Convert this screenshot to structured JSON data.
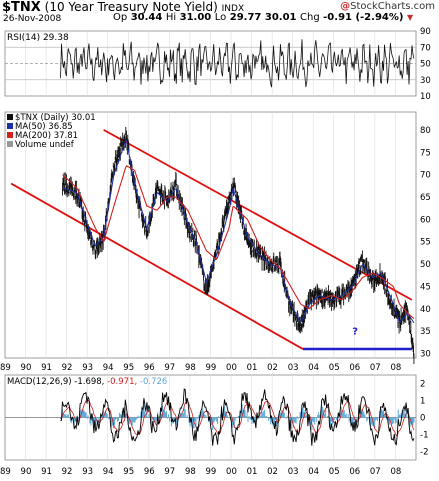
{
  "header": {
    "symbol": "$TNX",
    "name": "(10 Year Treasury Note Yield)",
    "exchange": "INDX",
    "date": "26-Nov-2008",
    "quote": {
      "open_label": "Op",
      "open": "30.44",
      "high_label": "Hi",
      "high": "31.00",
      "low_label": "Lo",
      "low": "29.77",
      "close": "30.01",
      "chg_label": "Chg",
      "chg": "-0.91 (-2.94%)",
      "chg_marker": "▼"
    },
    "watermark": "StockCharts.com"
  },
  "colors": {
    "price": "#111111",
    "ma50": "#1c2fa8",
    "ma200": "#d41f1f",
    "trend": "#e01010",
    "support": "#1f1fd0",
    "macd_line": "#000000",
    "macd_signal": "#cc2222",
    "macd_hist": "#5aa7d8"
  },
  "rsi": {
    "label": "RSI(14) 29.38",
    "y_ticks": [
      "90",
      "70",
      "50",
      "30",
      "10"
    ]
  },
  "price_panel": {
    "legend": [
      {
        "text": "$TNX (Daily) 30.01",
        "color": "#111111"
      },
      {
        "text": "MA(50) 36.85",
        "color": "#1c2fa8"
      },
      {
        "text": "MA(200) 37.81",
        "color": "#d41f1f"
      },
      {
        "text": "Volume undef",
        "color": "#999999"
      }
    ],
    "y_ticks": [
      "80",
      "75",
      "70",
      "65",
      "60",
      "55",
      "50",
      "45",
      "40",
      "35",
      "30"
    ],
    "annotation": "?"
  },
  "macd": {
    "label_prefix": "MACD(12,26,9)",
    "macd_value": "-1.698",
    "signal_value": "-0.971",
    "hist_value": "-0.726",
    "y_ticks": [
      "2",
      "1",
      "0",
      "-1",
      "-2"
    ]
  },
  "x_axis": {
    "ticks": [
      "89",
      "90",
      "91",
      "92",
      "93",
      "94",
      "95",
      "96",
      "97",
      "98",
      "99",
      "00",
      "01",
      "02",
      "03",
      "04",
      "05",
      "06",
      "07",
      "08"
    ]
  },
  "chart_data": [
    {
      "type": "line",
      "title": "RSI(14) 29.38",
      "ylim": [
        10,
        90
      ],
      "grid": true,
      "note": "oscillating daily RSI, range roughly 20-80"
    },
    {
      "type": "line",
      "title": "$TNX (10 Year Treasury Note Yield)",
      "x": [
        1991.8,
        1992.5,
        1993.0,
        1993.4,
        1993.8,
        1994.3,
        1994.9,
        1995.3,
        1995.9,
        1996.4,
        1996.9,
        1997.3,
        1997.9,
        1998.3,
        1998.8,
        1999.3,
        1999.9,
        2000.1,
        2000.8,
        2001.4,
        2001.9,
        2002.4,
        2002.9,
        2003.4,
        2003.8,
        2004.3,
        2004.9,
        2005.4,
        2005.9,
        2006.4,
        2006.9,
        2007.3,
        2007.9,
        2008.2,
        2008.6,
        2008.9
      ],
      "series": [
        {
          "name": "$TNX (Daily) 30.01",
          "values": [
            68,
            66,
            58,
            53,
            56,
            72,
            79,
            67,
            57,
            67,
            64,
            68,
            58,
            55,
            44,
            53,
            64,
            68,
            55,
            52,
            50,
            50,
            40,
            36,
            42,
            43,
            42,
            43,
            45,
            51,
            46,
            48,
            40,
            37,
            40,
            30.01
          ]
        },
        {
          "name": "MA(50) 36.85",
          "values": [
            67,
            66,
            59,
            54,
            56,
            70,
            78,
            68,
            58,
            66,
            64,
            67,
            59,
            55,
            46,
            52,
            62,
            67,
            56,
            52,
            50,
            49,
            41,
            37,
            41,
            43,
            42,
            43,
            45,
            50,
            47,
            48,
            41,
            37,
            39,
            36.85
          ]
        },
        {
          "name": "MA(200) 37.81",
          "values": [
            70,
            67,
            62,
            58,
            55,
            63,
            72,
            71,
            63,
            62,
            65,
            65,
            62,
            58,
            53,
            51,
            58,
            63,
            60,
            54,
            51,
            49,
            45,
            41,
            40,
            42,
            43,
            42,
            44,
            47,
            48,
            47,
            45,
            41,
            39,
            37.81
          ]
        }
      ],
      "trendlines": [
        {
          "from": [
            1993.8,
            80
          ],
          "to": [
            2008.8,
            42
          ]
        },
        {
          "from": [
            1989.3,
            68
          ],
          "to": [
            2003.5,
            31
          ]
        },
        {
          "from": [
            2003.5,
            31
          ],
          "to": [
            2008.8,
            31
          ]
        }
      ],
      "ylim": [
        29,
        84
      ],
      "xlim": [
        1989,
        2009
      ],
      "grid": true
    },
    {
      "type": "line",
      "title": "MACD(12,26,9)",
      "series": [
        {
          "name": "MACD",
          "value": -1.698
        },
        {
          "name": "Signal",
          "value": -0.971
        },
        {
          "name": "Histogram",
          "value": -0.726
        }
      ],
      "ylim": [
        -2.5,
        2.5
      ],
      "grid": true
    }
  ]
}
